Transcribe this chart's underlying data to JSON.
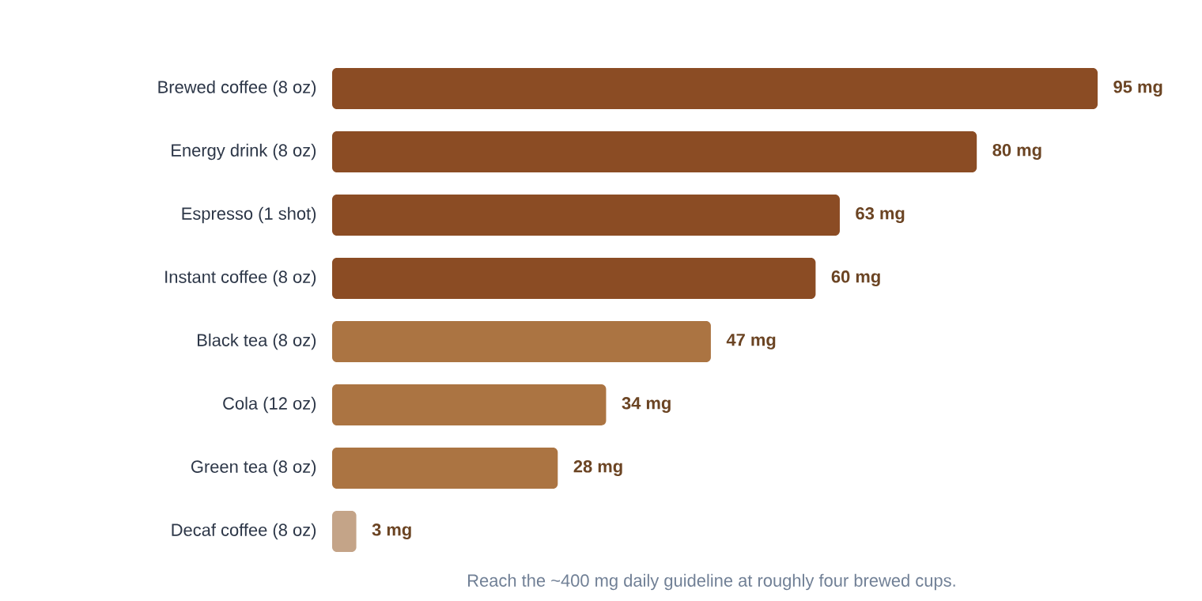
{
  "chart_data": {
    "type": "bar",
    "orientation": "horizontal",
    "categories": [
      "Brewed coffee (8 oz)",
      "Energy drink (8 oz)",
      "Espresso (1 shot)",
      "Instant coffee (8 oz)",
      "Black tea (8 oz)",
      "Cola (12 oz)",
      "Green tea (8 oz)",
      "Decaf coffee (8 oz)"
    ],
    "values": [
      95,
      80,
      63,
      60,
      47,
      34,
      28,
      3
    ],
    "value_labels": [
      "95 mg",
      "80 mg",
      "63 mg",
      "60 mg",
      "47 mg",
      "34 mg",
      "28 mg",
      "3 mg"
    ],
    "colors": [
      "#8b4c24",
      "#8b4c24",
      "#8b4c24",
      "#8b4c24",
      "#ab7442",
      "#ab7442",
      "#ab7442",
      "#c4a488"
    ],
    "annotations": [
      "Reach the ~400 mg daily guideline at roughly four brewed cups."
    ]
  }
}
